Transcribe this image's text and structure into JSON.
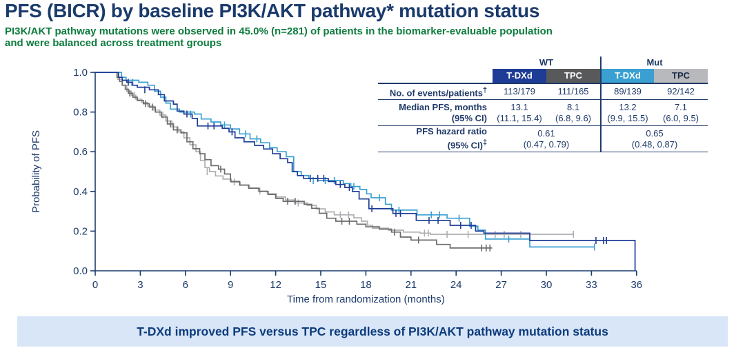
{
  "title": "PFS (BICR) by baseline PI3K/AKT pathway* mutation status",
  "subtitle_line1": "PI3K/AKT pathway mutations were observed in 45.0% (n=281) of patients in the biomarker-evaluable population",
  "subtitle_line2": "and were balanced across treatment groups",
  "banner_text": "T-DXd improved PFS versus TPC regardless of PI3K/AKT pathway mutation status",
  "colors": {
    "title_navy": "#1a3a6b",
    "subtitle_green": "#0e7c3f",
    "table_text": "#1f3a68",
    "axis_navy": "#1b3a6b",
    "tdxd_wt_blue": "#1e3c96",
    "tpc_wt_gray": "#6b6c6e",
    "tdxd_mut_blue": "#3aa0d2",
    "tpc_mut_gray": "#adafb2",
    "tpc_wt_header_bg": "#58595b",
    "tpc_mut_header_bg": "#b7b9bc",
    "banner_bg": "#d9e6f7",
    "banner_text": "#0d3c7c"
  },
  "table": {
    "group_wt": "WT",
    "group_mut": "Mut",
    "col_tdxd_wt": "T-DXd",
    "col_tpc_wt": "TPC",
    "col_tdxd_mut": "T-DXd",
    "col_tpc_mut": "TPC",
    "row_events": {
      "label": "No. of events/patients",
      "sup": "†",
      "v": [
        "113/179",
        "111/165",
        "89/139",
        "92/142"
      ]
    },
    "row_median": {
      "label": "Median PFS, months",
      "label2": "(95% CI)",
      "v": [
        "13.1",
        "8.1",
        "13.2",
        "7.1"
      ],
      "ci": [
        "(11.1, 15.4)",
        "(6.8, 9.6)",
        "(9.9, 15.5)",
        "(6.0, 9.5)"
      ]
    },
    "row_hr": {
      "label": "PFS hazard ratio",
      "label2": "(95% CI)",
      "sup": "‡",
      "wt": "0.61",
      "wt_ci": "(0.47, 0.79)",
      "mut": "0.65",
      "mut_ci": "(0.48, 0.87)"
    }
  },
  "chart_data": {
    "type": "line",
    "subtype": "kaplan-meier-step",
    "xlabel": "Time from randomization (months)",
    "ylabel": "Probability of PFS",
    "xlim": [
      0,
      36
    ],
    "ylim": [
      0.0,
      1.0
    ],
    "xticks": [
      0,
      3,
      6,
      9,
      12,
      15,
      18,
      21,
      24,
      27,
      30,
      33,
      36
    ],
    "yticks": [
      0.0,
      0.2,
      0.4,
      0.6,
      0.8,
      1.0
    ],
    "grid": false,
    "legend_position": "none (table header colors serve as legend)",
    "series": [
      {
        "name": "TPC (Mut)",
        "color": "#adafb2",
        "drop_to_zero": false,
        "steps": [
          [
            0,
            1.0
          ],
          [
            1.3,
            1.0
          ],
          [
            1.5,
            0.965
          ],
          [
            1.8,
            0.935
          ],
          [
            2.1,
            0.905
          ],
          [
            2.4,
            0.885
          ],
          [
            2.7,
            0.865
          ],
          [
            3.1,
            0.848
          ],
          [
            3.5,
            0.83
          ],
          [
            3.9,
            0.81
          ],
          [
            4.3,
            0.785
          ],
          [
            4.7,
            0.755
          ],
          [
            5.1,
            0.725
          ],
          [
            5.5,
            0.7
          ],
          [
            5.9,
            0.67
          ],
          [
            6.3,
            0.635
          ],
          [
            6.7,
            0.6
          ],
          [
            7.0,
            0.555
          ],
          [
            7.3,
            0.52
          ],
          [
            7.6,
            0.5
          ],
          [
            8.0,
            0.478
          ],
          [
            8.5,
            0.462
          ],
          [
            9.05,
            0.447
          ],
          [
            9.65,
            0.432
          ],
          [
            10.25,
            0.417
          ],
          [
            10.85,
            0.402
          ],
          [
            11.45,
            0.388
          ],
          [
            12.05,
            0.372
          ],
          [
            12.65,
            0.357
          ],
          [
            13.25,
            0.342
          ],
          [
            14.1,
            0.33
          ],
          [
            14.7,
            0.312
          ],
          [
            15.3,
            0.297
          ],
          [
            15.9,
            0.282
          ],
          [
            17.2,
            0.267
          ],
          [
            17.7,
            0.25
          ],
          [
            18.1,
            0.23
          ],
          [
            18.45,
            0.215
          ],
          [
            19.5,
            0.205
          ],
          [
            20.5,
            0.195
          ],
          [
            21.6,
            0.19
          ],
          [
            22.3,
            0.184
          ],
          [
            31.8,
            0.184
          ]
        ],
        "censors": [
          [
            2.6,
            0.885
          ],
          [
            4.5,
            0.785
          ],
          [
            7.45,
            0.5
          ],
          [
            9.25,
            0.447
          ],
          [
            10.95,
            0.402
          ],
          [
            13.5,
            0.342
          ],
          [
            16.3,
            0.282
          ],
          [
            16.85,
            0.282
          ],
          [
            21.9,
            0.19
          ],
          [
            22.15,
            0.19
          ],
          [
            23.4,
            0.184
          ],
          [
            24.8,
            0.184
          ],
          [
            26.6,
            0.184
          ],
          [
            27.2,
            0.184
          ],
          [
            28.3,
            0.184
          ],
          [
            31.8,
            0.184
          ]
        ]
      },
      {
        "name": "TPC (WT)",
        "color": "#6b6c6e",
        "drop_to_zero": false,
        "steps": [
          [
            0,
            1.0
          ],
          [
            1.3,
            1.0
          ],
          [
            1.45,
            0.975
          ],
          [
            1.62,
            0.955
          ],
          [
            1.8,
            0.935
          ],
          [
            2.0,
            0.915
          ],
          [
            2.2,
            0.895
          ],
          [
            2.5,
            0.875
          ],
          [
            2.8,
            0.858
          ],
          [
            3.2,
            0.842
          ],
          [
            3.6,
            0.825
          ],
          [
            4.0,
            0.8
          ],
          [
            4.4,
            0.775
          ],
          [
            4.8,
            0.74
          ],
          [
            5.2,
            0.71
          ],
          [
            5.7,
            0.695
          ],
          [
            6.1,
            0.65
          ],
          [
            6.5,
            0.615
          ],
          [
            6.95,
            0.59
          ],
          [
            7.3,
            0.56
          ],
          [
            7.7,
            0.53
          ],
          [
            8.2,
            0.512
          ],
          [
            8.6,
            0.488
          ],
          [
            9.0,
            0.45
          ],
          [
            9.6,
            0.432
          ],
          [
            10.2,
            0.416
          ],
          [
            10.9,
            0.4
          ],
          [
            11.5,
            0.385
          ],
          [
            12.0,
            0.365
          ],
          [
            12.5,
            0.35
          ],
          [
            13.9,
            0.335
          ],
          [
            14.4,
            0.315
          ],
          [
            14.9,
            0.29
          ],
          [
            15.4,
            0.265
          ],
          [
            16.0,
            0.25
          ],
          [
            17.4,
            0.235
          ],
          [
            18.0,
            0.222
          ],
          [
            18.9,
            0.21
          ],
          [
            19.7,
            0.195
          ],
          [
            20.3,
            0.17
          ],
          [
            21.0,
            0.155
          ],
          [
            22.7,
            0.133
          ],
          [
            23.6,
            0.115
          ],
          [
            26.4,
            0.115
          ]
        ],
        "censors": [
          [
            2.3,
            0.895
          ],
          [
            3.35,
            0.842
          ],
          [
            3.8,
            0.825
          ],
          [
            5.0,
            0.74
          ],
          [
            5.45,
            0.71
          ],
          [
            8.35,
            0.512
          ],
          [
            12.8,
            0.35
          ],
          [
            13.3,
            0.35
          ],
          [
            16.4,
            0.25
          ],
          [
            16.9,
            0.25
          ],
          [
            19.9,
            0.195
          ],
          [
            21.5,
            0.155
          ],
          [
            25.7,
            0.115
          ],
          [
            26.0,
            0.115
          ],
          [
            26.25,
            0.115
          ]
        ]
      },
      {
        "name": "T-DXd (Mut)",
        "color": "#3aa0d2",
        "drop_to_zero": false,
        "steps": [
          [
            0,
            1.0
          ],
          [
            1.5,
            1.0
          ],
          [
            1.75,
            0.975
          ],
          [
            2.05,
            0.96
          ],
          [
            2.9,
            0.95
          ],
          [
            3.5,
            0.935
          ],
          [
            3.95,
            0.905
          ],
          [
            4.35,
            0.875
          ],
          [
            4.7,
            0.845
          ],
          [
            5.0,
            0.815
          ],
          [
            5.6,
            0.8
          ],
          [
            6.6,
            0.79
          ],
          [
            7.05,
            0.765
          ],
          [
            7.7,
            0.75
          ],
          [
            8.35,
            0.735
          ],
          [
            9.0,
            0.715
          ],
          [
            9.6,
            0.69
          ],
          [
            10.3,
            0.665
          ],
          [
            11.0,
            0.645
          ],
          [
            11.6,
            0.62
          ],
          [
            12.1,
            0.6
          ],
          [
            12.7,
            0.575
          ],
          [
            13.2,
            0.5
          ],
          [
            13.7,
            0.48
          ],
          [
            14.2,
            0.465
          ],
          [
            14.8,
            0.455
          ],
          [
            16.5,
            0.44
          ],
          [
            17.0,
            0.425
          ],
          [
            17.6,
            0.41
          ],
          [
            18.05,
            0.388
          ],
          [
            18.35,
            0.368
          ],
          [
            19.3,
            0.335
          ],
          [
            19.7,
            0.306
          ],
          [
            21.4,
            0.282
          ],
          [
            23.4,
            0.265
          ],
          [
            24.9,
            0.225
          ],
          [
            25.45,
            0.205
          ],
          [
            25.95,
            0.16
          ],
          [
            28.9,
            0.12
          ],
          [
            33.2,
            0.12
          ]
        ],
        "censors": [
          [
            2.5,
            0.95
          ],
          [
            6.35,
            0.79
          ],
          [
            8.6,
            0.735
          ],
          [
            10.0,
            0.69
          ],
          [
            10.75,
            0.665
          ],
          [
            14.5,
            0.455
          ],
          [
            15.3,
            0.455
          ],
          [
            15.9,
            0.455
          ],
          [
            17.2,
            0.425
          ],
          [
            18.9,
            0.368
          ],
          [
            20.2,
            0.306
          ],
          [
            22.35,
            0.282
          ],
          [
            22.9,
            0.282
          ],
          [
            24.2,
            0.265
          ],
          [
            27.5,
            0.16
          ],
          [
            33.2,
            0.12
          ]
        ]
      },
      {
        "name": "T-DXd (WT)",
        "color": "#1e3c96",
        "drop_to_zero": true,
        "steps": [
          [
            0,
            1.0
          ],
          [
            1.4,
            1.0
          ],
          [
            1.55,
            0.975
          ],
          [
            1.8,
            0.96
          ],
          [
            2.1,
            0.95
          ],
          [
            2.45,
            0.935
          ],
          [
            2.8,
            0.925
          ],
          [
            3.6,
            0.912
          ],
          [
            4.2,
            0.888
          ],
          [
            4.6,
            0.856
          ],
          [
            5.2,
            0.84
          ],
          [
            5.45,
            0.805
          ],
          [
            5.9,
            0.79
          ],
          [
            6.45,
            0.768
          ],
          [
            6.8,
            0.73
          ],
          [
            8.45,
            0.718
          ],
          [
            8.9,
            0.7
          ],
          [
            9.3,
            0.67
          ],
          [
            9.9,
            0.65
          ],
          [
            10.6,
            0.632
          ],
          [
            11.2,
            0.614
          ],
          [
            11.8,
            0.59
          ],
          [
            12.3,
            0.565
          ],
          [
            12.8,
            0.545
          ],
          [
            13.1,
            0.5
          ],
          [
            13.45,
            0.48
          ],
          [
            13.85,
            0.466
          ],
          [
            15.5,
            0.45
          ],
          [
            16.0,
            0.435
          ],
          [
            16.6,
            0.42
          ],
          [
            17.1,
            0.4
          ],
          [
            17.55,
            0.362
          ],
          [
            18.2,
            0.313
          ],
          [
            19.8,
            0.289
          ],
          [
            21.35,
            0.254
          ],
          [
            23.6,
            0.229
          ],
          [
            25.3,
            0.2
          ],
          [
            25.85,
            0.19
          ],
          [
            28.9,
            0.153
          ],
          [
            35.9,
            0.153
          ]
        ],
        "censors": [
          [
            2.2,
            0.95
          ],
          [
            3.3,
            0.912
          ],
          [
            6.1,
            0.79
          ],
          [
            7.5,
            0.73
          ],
          [
            7.9,
            0.73
          ],
          [
            9.1,
            0.7
          ],
          [
            14.3,
            0.466
          ],
          [
            14.8,
            0.466
          ],
          [
            15.2,
            0.466
          ],
          [
            16.3,
            0.435
          ],
          [
            16.9,
            0.42
          ],
          [
            18.4,
            0.313
          ],
          [
            20.0,
            0.289
          ],
          [
            20.3,
            0.289
          ],
          [
            22.2,
            0.254
          ],
          [
            22.8,
            0.254
          ],
          [
            24.3,
            0.229
          ],
          [
            25.0,
            0.229
          ],
          [
            33.3,
            0.153
          ],
          [
            33.8,
            0.153
          ],
          [
            34.0,
            0.153
          ]
        ]
      }
    ],
    "medians_months": {
      "T-DXd (WT)": 13.1,
      "TPC (WT)": 8.1,
      "T-DXd (Mut)": 13.2,
      "TPC (Mut)": 7.1
    },
    "hazard_ratios": {
      "WT": "0.61 (0.47, 0.79)",
      "Mut": "0.65 (0.48, 0.87)"
    }
  }
}
